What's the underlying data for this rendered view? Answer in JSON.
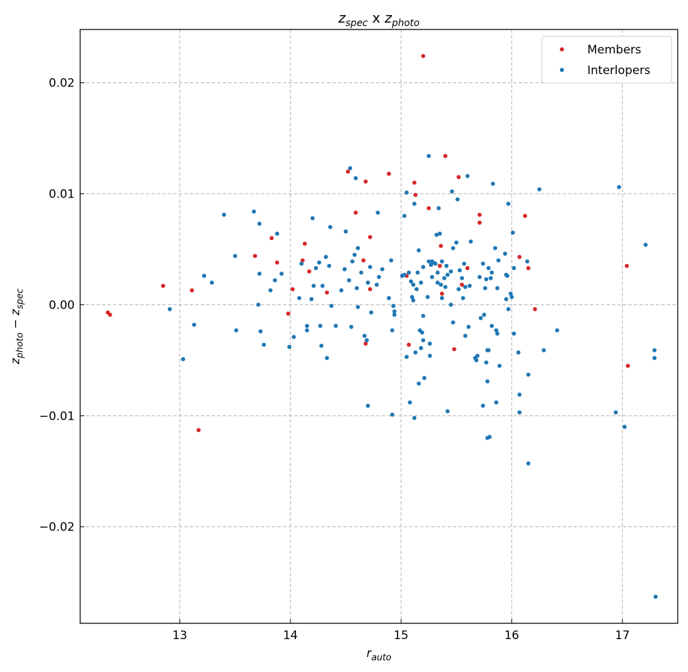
{
  "chart_data": {
    "type": "scatter",
    "title": {
      "base1": "z",
      "sub1": "spec",
      "mid": " x ",
      "base2": "z",
      "sub2": "photo"
    },
    "xlabel": {
      "base": "r",
      "sub": "auto"
    },
    "ylabel": {
      "base1": "z",
      "sub1": "photo",
      "mid": " − ",
      "base2": "z",
      "sub2": "spec"
    },
    "xlim": [
      12.1,
      17.5
    ],
    "ylim": [
      -0.0287,
      0.0248
    ],
    "xticks": [
      13,
      14,
      15,
      16,
      17
    ],
    "yticks": [
      -0.02,
      -0.01,
      0.0,
      0.01,
      0.02
    ],
    "xtick_labels": [
      "13",
      "14",
      "15",
      "16",
      "17"
    ],
    "ytick_labels": [
      "−0.02",
      "−0.01",
      "0.00",
      "0.01",
      "0.02"
    ],
    "grid": true,
    "legend_position": "top-right",
    "series": [
      {
        "name": "Members",
        "color": "#d62728",
        "points": [
          [
            12.35,
            -0.0007
          ],
          [
            12.37,
            -0.0009
          ],
          [
            12.85,
            0.0017
          ],
          [
            13.11,
            0.0013
          ],
          [
            13.17,
            -0.0113
          ],
          [
            13.68,
            0.0044
          ],
          [
            13.83,
            0.006
          ],
          [
            13.88,
            0.0038
          ],
          [
            13.98,
            -0.0008
          ],
          [
            14.02,
            0.0014
          ],
          [
            14.11,
            0.004
          ],
          [
            14.13,
            0.0055
          ],
          [
            14.17,
            0.003
          ],
          [
            14.33,
            0.0011
          ],
          [
            14.52,
            0.012
          ],
          [
            14.59,
            0.0083
          ],
          [
            14.66,
            0.004
          ],
          [
            14.68,
            0.0111
          ],
          [
            14.68,
            -0.0035
          ],
          [
            14.72,
            0.0061
          ],
          [
            14.72,
            0.0014
          ],
          [
            14.89,
            0.0118
          ],
          [
            15.05,
            0.0026
          ],
          [
            15.07,
            -0.0036
          ],
          [
            15.12,
            0.011
          ],
          [
            15.13,
            0.0099
          ],
          [
            15.2,
            0.0224
          ],
          [
            15.25,
            0.0087
          ],
          [
            15.35,
            0.0035
          ],
          [
            15.36,
            0.0053
          ],
          [
            15.37,
            0.001
          ],
          [
            15.4,
            0.0134
          ],
          [
            15.48,
            -0.004
          ],
          [
            15.52,
            0.0115
          ],
          [
            15.55,
            0.0018
          ],
          [
            15.6,
            0.0033
          ],
          [
            15.71,
            0.0081
          ],
          [
            15.71,
            0.0074
          ],
          [
            16.07,
            0.0043
          ],
          [
            16.12,
            0.008
          ],
          [
            16.15,
            0.0033
          ],
          [
            16.21,
            -0.0004
          ],
          [
            17.04,
            0.0035
          ],
          [
            17.05,
            -0.0055
          ]
        ]
      },
      {
        "name": "Interlopers",
        "color": "#1f77b4",
        "points": [
          [
            12.91,
            -0.0004
          ],
          [
            13.03,
            -0.0049
          ],
          [
            13.13,
            -0.0018
          ],
          [
            13.22,
            0.0026
          ],
          [
            13.29,
            0.002
          ],
          [
            13.4,
            0.0081
          ],
          [
            13.5,
            0.0044
          ],
          [
            13.51,
            -0.0023
          ],
          [
            13.67,
            0.0084
          ],
          [
            13.71,
            0.0
          ],
          [
            13.72,
            0.0073
          ],
          [
            13.72,
            0.0028
          ],
          [
            13.73,
            -0.0024
          ],
          [
            13.76,
            -0.0036
          ],
          [
            13.82,
            0.0013
          ],
          [
            13.86,
            0.0022
          ],
          [
            13.88,
            0.0064
          ],
          [
            13.92,
            0.0028
          ],
          [
            13.99,
            -0.0038
          ],
          [
            14.03,
            -0.0029
          ],
          [
            14.08,
            0.0006
          ],
          [
            14.1,
            0.0037
          ],
          [
            14.15,
            -0.0019
          ],
          [
            14.15,
            -0.0023
          ],
          [
            14.19,
            0.0005
          ],
          [
            14.2,
            0.0078
          ],
          [
            14.21,
            0.0017
          ],
          [
            14.23,
            0.0033
          ],
          [
            14.26,
            0.0038
          ],
          [
            14.27,
            -0.0019
          ],
          [
            14.28,
            -0.0037
          ],
          [
            14.29,
            0.0017
          ],
          [
            14.32,
            0.0043
          ],
          [
            14.33,
            -0.0048
          ],
          [
            14.35,
            0.0035
          ],
          [
            14.36,
            0.007
          ],
          [
            14.37,
            -0.0001
          ],
          [
            14.41,
            -0.0019
          ],
          [
            14.46,
            0.0013
          ],
          [
            14.49,
            0.0032
          ],
          [
            14.5,
            0.0066
          ],
          [
            14.53,
            0.0022
          ],
          [
            14.54,
            0.0123
          ],
          [
            14.55,
            -0.002
          ],
          [
            14.56,
            0.0039
          ],
          [
            14.58,
            0.0045
          ],
          [
            14.59,
            0.0114
          ],
          [
            14.6,
            0.0015
          ],
          [
            14.61,
            0.0051
          ],
          [
            14.61,
            -0.0002
          ],
          [
            14.64,
            0.0029
          ],
          [
            14.67,
            -0.0028
          ],
          [
            14.69,
            -0.0032
          ],
          [
            14.7,
            -0.0091
          ],
          [
            14.7,
            0.002
          ],
          [
            14.72,
            0.0034
          ],
          [
            14.73,
            -0.0007
          ],
          [
            14.78,
            0.0018
          ],
          [
            14.79,
            0.0083
          ],
          [
            14.8,
            0.0025
          ],
          [
            14.83,
            0.0032
          ],
          [
            14.89,
            0.0006
          ],
          [
            14.91,
            0.004
          ],
          [
            14.92,
            -0.0099
          ],
          [
            14.92,
            -0.0023
          ],
          [
            14.93,
            -0.0001
          ],
          [
            14.94,
            -0.0009
          ],
          [
            14.94,
            -0.0006
          ],
          [
            15.01,
            0.0026
          ],
          [
            15.03,
            0.0027
          ],
          [
            15.03,
            0.008
          ],
          [
            15.05,
            0.0101
          ],
          [
            15.05,
            -0.0047
          ],
          [
            15.07,
            0.0029
          ],
          [
            15.08,
            -0.0088
          ],
          [
            15.09,
            0.0021
          ],
          [
            15.1,
            0.0007
          ],
          [
            15.11,
            0.0018
          ],
          [
            15.11,
            0.0004
          ],
          [
            15.12,
            -0.0102
          ],
          [
            15.12,
            0.0091
          ],
          [
            15.13,
            -0.0043
          ],
          [
            15.14,
            0.0014
          ],
          [
            15.15,
            0.0029
          ],
          [
            15.16,
            0.0049
          ],
          [
            15.16,
            -0.0071
          ],
          [
            15.17,
            -0.0023
          ],
          [
            15.18,
            0.002
          ],
          [
            15.18,
            -0.0039
          ],
          [
            15.19,
            -0.0025
          ],
          [
            15.2,
            0.0034
          ],
          [
            15.2,
            -0.001
          ],
          [
            15.2,
            -0.0032
          ],
          [
            15.21,
            -0.0066
          ],
          [
            15.24,
            0.0007
          ],
          [
            15.25,
            0.0134
          ],
          [
            15.25,
            0.0039
          ],
          [
            15.26,
            -0.0046
          ],
          [
            15.26,
            -0.0035
          ],
          [
            15.27,
            0.0036
          ],
          [
            15.28,
            0.0025
          ],
          [
            15.28,
            0.0039
          ],
          [
            15.29,
            0.0038
          ],
          [
            15.31,
            0.0037
          ],
          [
            15.32,
            0.0063
          ],
          [
            15.33,
            0.0029
          ],
          [
            15.33,
            0.002
          ],
          [
            15.34,
            0.0087
          ],
          [
            15.35,
            0.0064
          ],
          [
            15.36,
            0.0018
          ],
          [
            15.37,
            0.0039
          ],
          [
            15.37,
            0.0006
          ],
          [
            15.39,
            0.0024
          ],
          [
            15.4,
            0.0016
          ],
          [
            15.41,
            0.0035
          ],
          [
            15.42,
            0.0027
          ],
          [
            15.42,
            -0.0096
          ],
          [
            15.45,
            0.003
          ],
          [
            15.45,
            0.0
          ],
          [
            15.46,
            0.0102
          ],
          [
            15.47,
            0.0051
          ],
          [
            15.47,
            -0.0016
          ],
          [
            15.5,
            0.0056
          ],
          [
            15.51,
            0.0095
          ],
          [
            15.52,
            0.0014
          ],
          [
            15.53,
            0.0031
          ],
          [
            15.55,
            0.0024
          ],
          [
            15.56,
            0.0006
          ],
          [
            15.57,
            0.0037
          ],
          [
            15.58,
            0.0016
          ],
          [
            15.58,
            -0.0028
          ],
          [
            15.6,
            0.0116
          ],
          [
            15.61,
            -0.002
          ],
          [
            15.62,
            0.0017
          ],
          [
            15.63,
            0.0057
          ],
          [
            15.67,
            -0.0048
          ],
          [
            15.68,
            -0.005
          ],
          [
            15.69,
            -0.0046
          ],
          [
            15.71,
            0.0025
          ],
          [
            15.72,
            -0.0012
          ],
          [
            15.74,
            0.0037
          ],
          [
            15.74,
            -0.0091
          ],
          [
            15.75,
            -0.0009
          ],
          [
            15.76,
            0.0015
          ],
          [
            15.77,
            -0.0052
          ],
          [
            15.77,
            0.0023
          ],
          [
            15.78,
            -0.012
          ],
          [
            15.78,
            -0.0069
          ],
          [
            15.78,
            -0.0041
          ],
          [
            15.79,
            0.0033
          ],
          [
            15.79,
            -0.0041
          ],
          [
            15.8,
            -0.0119
          ],
          [
            15.81,
            0.0024
          ],
          [
            15.82,
            -0.0019
          ],
          [
            15.82,
            0.0029
          ],
          [
            15.83,
            0.0109
          ],
          [
            15.85,
            0.0051
          ],
          [
            15.86,
            -0.0088
          ],
          [
            15.86,
            -0.0023
          ],
          [
            15.87,
            0.0015
          ],
          [
            15.87,
            -0.0026
          ],
          [
            15.88,
            0.004
          ],
          [
            15.89,
            -0.0055
          ],
          [
            15.94,
            0.0046
          ],
          [
            15.95,
            0.0027
          ],
          [
            15.95,
            0.0005
          ],
          [
            15.96,
            0.0026
          ],
          [
            15.97,
            0.0091
          ],
          [
            15.97,
            -0.0004
          ],
          [
            15.99,
            0.001
          ],
          [
            16.0,
            0.0007
          ],
          [
            16.01,
            0.0065
          ],
          [
            16.02,
            0.0033
          ],
          [
            16.02,
            -0.0026
          ],
          [
            16.06,
            -0.0043
          ],
          [
            16.07,
            -0.0081
          ],
          [
            16.07,
            -0.0097
          ],
          [
            16.14,
            0.0039
          ],
          [
            16.15,
            -0.0063
          ],
          [
            16.15,
            -0.0143
          ],
          [
            16.25,
            0.0104
          ],
          [
            16.29,
            -0.0041
          ],
          [
            16.41,
            -0.0023
          ],
          [
            16.94,
            -0.0097
          ],
          [
            16.97,
            0.0106
          ],
          [
            17.02,
            -0.011
          ],
          [
            17.21,
            0.0054
          ],
          [
            17.29,
            -0.0048
          ],
          [
            17.29,
            -0.0041
          ],
          [
            17.3,
            -0.0263
          ]
        ]
      }
    ]
  }
}
